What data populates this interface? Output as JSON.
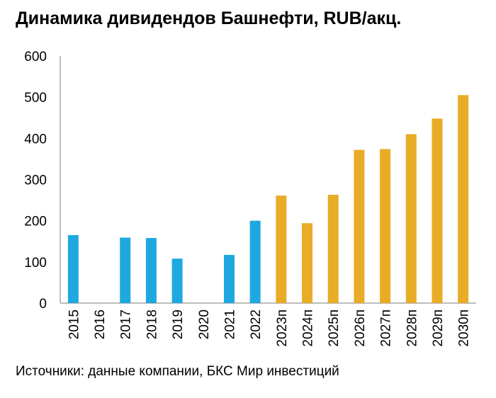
{
  "title": "Динамика дивидендов Башнефти, RUB/акц.",
  "source": "Источники: данные компании, БКС Мир инвестиций",
  "colors": {
    "actual": "#1fa8e0",
    "forecast": "#e9ac26",
    "axis": "#bdbdbd"
  },
  "chart_data": {
    "type": "bar",
    "title": "Динамика дивидендов Башнефти, RUB/акц.",
    "xlabel": "",
    "ylabel": "",
    "ylim": [
      0,
      600
    ],
    "yticks": [
      0,
      100,
      200,
      300,
      400,
      500,
      600
    ],
    "categories": [
      "2015",
      "2016",
      "2017",
      "2018",
      "2019",
      "2020",
      "2021",
      "2022",
      "2023п",
      "2024п",
      "2025п",
      "2026п",
      "2027п",
      "2028п",
      "2029п",
      "2030п"
    ],
    "values": [
      165,
      0,
      159,
      158,
      108,
      0,
      117,
      200,
      261,
      194,
      263,
      372,
      374,
      410,
      448,
      505
    ],
    "bar_type": [
      "actual",
      "actual",
      "actual",
      "actual",
      "actual",
      "actual",
      "actual",
      "actual",
      "forecast",
      "forecast",
      "forecast",
      "forecast",
      "forecast",
      "forecast",
      "forecast",
      "forecast"
    ],
    "grid": false,
    "legend": "none"
  }
}
